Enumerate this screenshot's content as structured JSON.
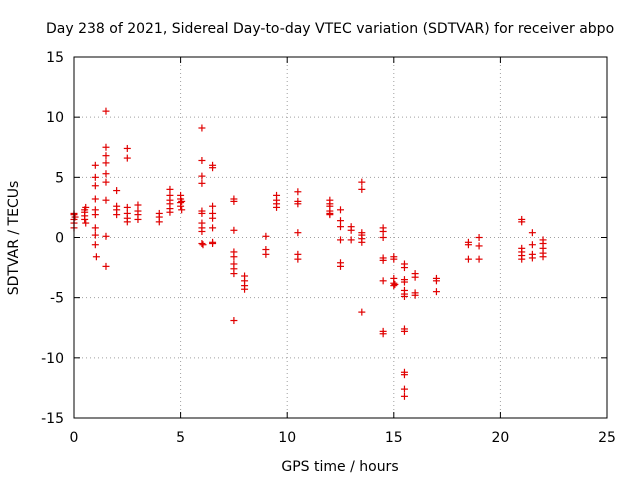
{
  "chart_data": {
    "type": "scatter",
    "title": "Day 238 of 2021, Sidereal Day-to-day VTEC variation (SDTVAR) for receiver abpo",
    "xlabel": "GPS time / hours",
    "ylabel": "SDTVAR / TECUs",
    "xlim": [
      0,
      25
    ],
    "ylim": [
      -15,
      15
    ],
    "x_ticks": [
      0,
      5,
      10,
      15,
      20,
      25
    ],
    "y_ticks": [
      -15,
      -10,
      -5,
      0,
      5,
      10,
      15
    ],
    "x_tick_labels": [
      "0",
      "5",
      "10",
      "15",
      "20",
      "25"
    ],
    "y_tick_labels": [
      "-15",
      "-10",
      "-5",
      "0",
      "5",
      "10",
      "15"
    ],
    "grid": true,
    "marker": "+",
    "color": "#e00000",
    "series": [
      {
        "name": "SDTVAR",
        "points": [
          [
            0.0,
            1.5
          ],
          [
            0.0,
            1.9
          ],
          [
            0.0,
            1.2
          ],
          [
            0.0,
            0.8
          ],
          [
            0.0,
            2.0
          ],
          [
            0.05,
            1.7
          ],
          [
            0.5,
            2.3
          ],
          [
            0.5,
            1.8
          ],
          [
            0.5,
            1.5
          ],
          [
            0.5,
            2.1
          ],
          [
            0.55,
            1.2
          ],
          [
            0.55,
            2.5
          ],
          [
            1.0,
            6.0
          ],
          [
            1.0,
            5.0
          ],
          [
            1.0,
            4.3
          ],
          [
            1.0,
            3.2
          ],
          [
            1.0,
            2.3
          ],
          [
            1.0,
            1.9
          ],
          [
            1.0,
            0.8
          ],
          [
            1.0,
            0.2
          ],
          [
            1.0,
            -0.6
          ],
          [
            1.05,
            -1.6
          ],
          [
            1.5,
            10.5
          ],
          [
            1.5,
            7.5
          ],
          [
            1.5,
            6.8
          ],
          [
            1.5,
            6.2
          ],
          [
            1.5,
            5.3
          ],
          [
            1.5,
            4.6
          ],
          [
            1.5,
            3.1
          ],
          [
            1.5,
            0.1
          ],
          [
            1.5,
            -2.4
          ],
          [
            2.0,
            3.9
          ],
          [
            2.0,
            2.6
          ],
          [
            2.0,
            2.3
          ],
          [
            2.0,
            1.9
          ],
          [
            2.5,
            7.4
          ],
          [
            2.5,
            6.6
          ],
          [
            2.5,
            2.5
          ],
          [
            2.5,
            2.0
          ],
          [
            2.5,
            1.6
          ],
          [
            2.5,
            1.3
          ],
          [
            3.0,
            2.7
          ],
          [
            3.0,
            2.2
          ],
          [
            3.0,
            1.9
          ],
          [
            3.0,
            1.5
          ],
          [
            4.0,
            2.0
          ],
          [
            4.0,
            1.7
          ],
          [
            4.0,
            1.3
          ],
          [
            4.5,
            4.0
          ],
          [
            4.5,
            3.5
          ],
          [
            4.5,
            3.1
          ],
          [
            4.5,
            2.8
          ],
          [
            4.5,
            2.4
          ],
          [
            4.5,
            2.1
          ],
          [
            5.0,
            3.5
          ],
          [
            5.0,
            3.2
          ],
          [
            5.0,
            2.9
          ],
          [
            5.0,
            2.6
          ],
          [
            5.05,
            2.3
          ],
          [
            5.05,
            3.0
          ],
          [
            6.0,
            9.1
          ],
          [
            6.0,
            6.4
          ],
          [
            6.0,
            5.1
          ],
          [
            6.0,
            4.5
          ],
          [
            6.0,
            2.2
          ],
          [
            6.0,
            2.0
          ],
          [
            6.0,
            1.2
          ],
          [
            6.0,
            0.8
          ],
          [
            6.0,
            0.5
          ],
          [
            6.0,
            -0.5
          ],
          [
            6.05,
            -0.6
          ],
          [
            6.5,
            6.0
          ],
          [
            6.5,
            5.8
          ],
          [
            6.5,
            2.6
          ],
          [
            6.5,
            2.0
          ],
          [
            6.5,
            1.6
          ],
          [
            6.5,
            0.8
          ],
          [
            6.5,
            -0.4
          ],
          [
            6.5,
            -0.5
          ],
          [
            7.5,
            3.2
          ],
          [
            7.5,
            3.0
          ],
          [
            7.5,
            0.6
          ],
          [
            7.5,
            -1.2
          ],
          [
            7.5,
            -1.6
          ],
          [
            7.5,
            -2.2
          ],
          [
            7.5,
            -2.6
          ],
          [
            7.5,
            -3.0
          ],
          [
            7.5,
            -6.9
          ],
          [
            8.0,
            -3.2
          ],
          [
            8.0,
            -3.6
          ],
          [
            8.0,
            -4.0
          ],
          [
            8.0,
            -4.3
          ],
          [
            9.0,
            0.1
          ],
          [
            9.0,
            -1.0
          ],
          [
            9.0,
            -1.4
          ],
          [
            9.5,
            3.5
          ],
          [
            9.5,
            3.1
          ],
          [
            9.5,
            2.8
          ],
          [
            9.5,
            2.5
          ],
          [
            10.5,
            3.8
          ],
          [
            10.5,
            3.0
          ],
          [
            10.5,
            2.8
          ],
          [
            10.5,
            0.4
          ],
          [
            10.5,
            -1.4
          ],
          [
            10.5,
            -1.8
          ],
          [
            12.0,
            3.1
          ],
          [
            12.0,
            2.8
          ],
          [
            12.0,
            2.6
          ],
          [
            12.0,
            2.2
          ],
          [
            12.0,
            2.0
          ],
          [
            12.0,
            1.9
          ],
          [
            12.5,
            2.3
          ],
          [
            12.5,
            1.4
          ],
          [
            12.5,
            0.9
          ],
          [
            12.5,
            -0.2
          ],
          [
            12.5,
            -2.1
          ],
          [
            12.5,
            -2.4
          ],
          [
            13.0,
            0.9
          ],
          [
            13.0,
            0.6
          ],
          [
            13.0,
            -0.2
          ],
          [
            13.5,
            4.6
          ],
          [
            13.5,
            4.0
          ],
          [
            13.5,
            0.4
          ],
          [
            13.5,
            0.2
          ],
          [
            13.5,
            -0.1
          ],
          [
            13.5,
            -0.4
          ],
          [
            13.5,
            -6.2
          ],
          [
            14.5,
            0.8
          ],
          [
            14.5,
            0.5
          ],
          [
            14.5,
            0.0
          ],
          [
            14.5,
            -1.7
          ],
          [
            14.5,
            -1.9
          ],
          [
            14.5,
            -3.6
          ],
          [
            14.5,
            -7.8
          ],
          [
            14.5,
            -8.0
          ],
          [
            15.0,
            -1.6
          ],
          [
            15.0,
            -1.8
          ],
          [
            15.0,
            -3.4
          ],
          [
            15.0,
            -3.8
          ],
          [
            15.0,
            -4.0
          ],
          [
            15.05,
            -3.9
          ],
          [
            15.5,
            -2.2
          ],
          [
            15.5,
            -2.5
          ],
          [
            15.5,
            -3.5
          ],
          [
            15.5,
            -3.7
          ],
          [
            15.5,
            -4.4
          ],
          [
            15.5,
            -4.7
          ],
          [
            15.5,
            -4.9
          ],
          [
            15.5,
            -7.6
          ],
          [
            15.5,
            -7.8
          ],
          [
            15.5,
            -11.2
          ],
          [
            15.5,
            -11.4
          ],
          [
            15.5,
            -12.6
          ],
          [
            15.5,
            -13.2
          ],
          [
            16.0,
            -3.0
          ],
          [
            16.0,
            -3.3
          ],
          [
            16.0,
            -4.6
          ],
          [
            16.0,
            -4.8
          ],
          [
            17.0,
            -3.4
          ],
          [
            17.0,
            -3.6
          ],
          [
            17.0,
            -4.5
          ],
          [
            18.5,
            -0.4
          ],
          [
            18.5,
            -0.6
          ],
          [
            18.5,
            -1.8
          ],
          [
            19.0,
            0.0
          ],
          [
            19.0,
            -0.7
          ],
          [
            19.0,
            -1.8
          ],
          [
            21.0,
            1.5
          ],
          [
            21.0,
            1.3
          ],
          [
            21.0,
            -0.9
          ],
          [
            21.0,
            -1.2
          ],
          [
            21.0,
            -1.5
          ],
          [
            21.0,
            -1.8
          ],
          [
            21.5,
            0.4
          ],
          [
            21.5,
            -0.6
          ],
          [
            21.5,
            -1.4
          ],
          [
            21.5,
            -1.7
          ],
          [
            22.0,
            -0.2
          ],
          [
            22.0,
            -0.5
          ],
          [
            22.0,
            -0.9
          ],
          [
            22.0,
            -1.3
          ],
          [
            22.0,
            -1.6
          ]
        ]
      }
    ]
  }
}
